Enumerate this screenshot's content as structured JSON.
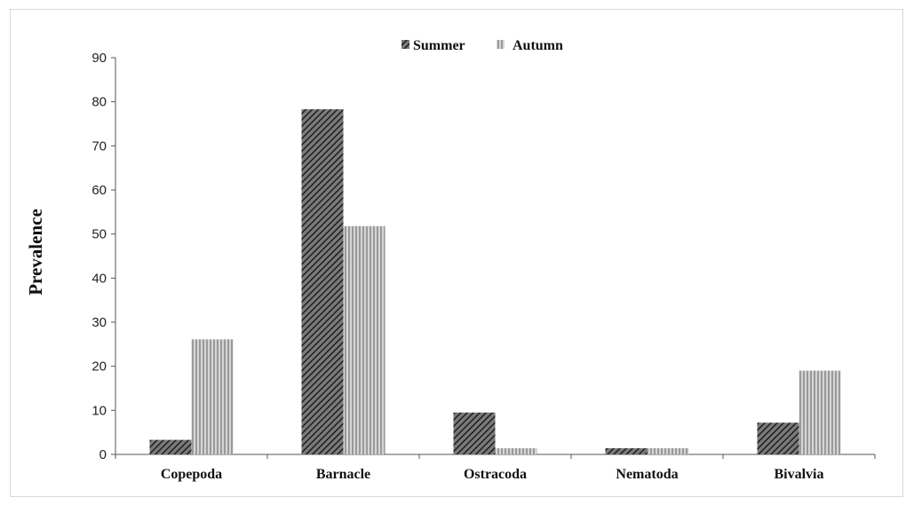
{
  "chart_data": {
    "type": "bar",
    "title": "",
    "xlabel": "",
    "ylabel": "Prevalence",
    "ylim": [
      0,
      90
    ],
    "yticks": [
      0,
      10,
      20,
      30,
      40,
      50,
      60,
      70,
      80,
      90
    ],
    "grid": false,
    "legend_position": "top-center",
    "categories": [
      "Copepoda",
      "Barnacle",
      "Ostracoda",
      "Nematoda",
      "Bivalvia"
    ],
    "series": [
      {
        "name": "Summer",
        "values": [
          3.3,
          78.3,
          9.5,
          1.4,
          7.2
        ],
        "color": "#3a3a3a",
        "pattern": "diagonal-hatch"
      },
      {
        "name": "Autumn",
        "values": [
          26.1,
          51.8,
          1.4,
          1.4,
          19.0
        ],
        "color": "#9a9a9a",
        "pattern": "vertical-stripes"
      }
    ]
  }
}
